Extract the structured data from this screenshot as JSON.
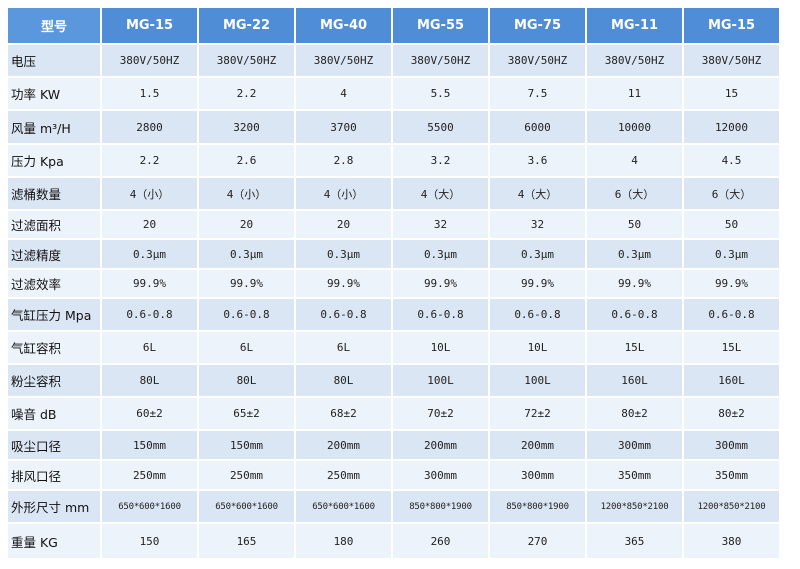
{
  "headers": [
    "型号",
    "MG-15",
    "MG-22",
    "MG-40",
    "MG-55",
    "MG-75",
    "MG-11",
    "MG-15"
  ],
  "rows": [
    {
      "label": "电压",
      "values": [
        "380V/50HZ",
        "380V/50HZ",
        "380V/50HZ",
        "380V/50HZ",
        "380V/50HZ",
        "380V/50HZ",
        "380V/50HZ"
      ]
    },
    {
      "label": "功率 KW",
      "values": [
        "1.5",
        "2.2",
        "4",
        "5.5",
        "7.5",
        "11",
        "15"
      ]
    },
    {
      "label": "风量 m³/H",
      "values": [
        "2800",
        "3200",
        "3700",
        "5500",
        "6000",
        "10000",
        "12000"
      ]
    },
    {
      "label": "压力 Kpa",
      "values": [
        "2.2",
        "2.6",
        "2.8",
        "3.2",
        "3.6",
        "4",
        "4.5"
      ]
    },
    {
      "label": "滤桶数量",
      "values": [
        "4（小）",
        "4（小）",
        "4（小）",
        "4（大）",
        "4（大）",
        "6（大）",
        "6（大）"
      ]
    },
    {
      "label": "过滤面积",
      "values": [
        "20",
        "20",
        "20",
        "32",
        "32",
        "50",
        "50"
      ]
    },
    {
      "label": "过滤精度",
      "values": [
        "0.3μm",
        "0.3μm",
        "0.3μm",
        "0.3μm",
        "0.3μm",
        "0.3μm",
        "0.3μm"
      ]
    },
    {
      "label": "过滤效率",
      "values": [
        "99.9%",
        "99.9%",
        "99.9%",
        "99.9%",
        "99.9%",
        "99.9%",
        "99.9%"
      ]
    },
    {
      "label": "气缸压力 Mpa",
      "values": [
        "0.6-0.8",
        "0.6-0.8",
        "0.6-0.8",
        "0.6-0.8",
        "0.6-0.8",
        "0.6-0.8",
        "0.6-0.8"
      ]
    },
    {
      "label": "气缸容积",
      "values": [
        "6L",
        "6L",
        "6L",
        "10L",
        "10L",
        "15L",
        "15L"
      ]
    },
    {
      "label": "粉尘容积",
      "values": [
        "80L",
        "80L",
        "80L",
        "100L",
        "100L",
        "160L",
        "160L"
      ]
    },
    {
      "label": "噪音 dB",
      "values": [
        "60±2",
        "65±2",
        "68±2",
        "70±2",
        "72±2",
        "80±2",
        "80±2"
      ]
    },
    {
      "label": "吸尘口径",
      "values": [
        "150mm",
        "150mm",
        "200mm",
        "200mm",
        "200mm",
        "300mm",
        "300mm"
      ]
    },
    {
      "label": "排风口径",
      "values": [
        "250mm",
        "250mm",
        "250mm",
        "300mm",
        "300mm",
        "350mm",
        "350mm"
      ]
    },
    {
      "label": "外形尺寸 mm",
      "values": [
        "650*600*1600",
        "650*600*1600",
        "650*600*1600",
        "850*800*1900",
        "850*800*1900",
        "1200*850*2100",
        "1200*850*2100"
      ]
    },
    {
      "label": "重量 KG",
      "values": [
        "150",
        "165",
        "180",
        "260",
        "270",
        "365",
        "380"
      ]
    }
  ],
  "colors": {
    "header_bg": "#4f8dd6",
    "row_odd_bg": "#dbe6f4",
    "row_even_bg": "#edf3fa"
  }
}
